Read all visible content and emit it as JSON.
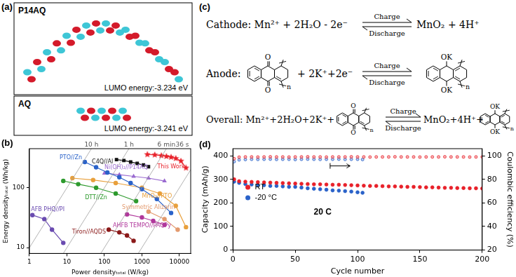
{
  "panel_a": {
    "label": "(a)",
    "molecules": [
      {
        "name": "P14AQ",
        "caption": "LUMO energy:-3.234 eV"
      },
      {
        "name": "AQ",
        "caption": "LUMO energy:-3.241 eV"
      }
    ]
  },
  "panel_c": {
    "label": "(c)",
    "arrow_top": "Charge",
    "arrow_bottom": "Discharge",
    "cathode": {
      "prefix": "Cathode:",
      "left": "Mn²⁺ + 2H₂O - 2e⁻",
      "right": "MnO₂ + 4H⁺"
    },
    "anode": {
      "prefix": "Anode:",
      "left": "+ 2K⁺+2e⁻"
    },
    "overall": {
      "prefix": "Overall:",
      "left": "Mn²⁺+2H₂O+2K⁺+",
      "right": "MnO₂+4H⁺+"
    },
    "structure_atoms": {
      "oxidized": "O",
      "reduced": "OK",
      "repeat": "n"
    }
  },
  "chart_data": [
    {
      "type": "scatter",
      "title": "(b)",
      "x_label": "Power densityₜₒₜₐₗ (W/kg)",
      "y_label": "Energy densityₜₒₜₐₗ (Wh/kg)",
      "log": true,
      "grid": false,
      "xlim": [
        1,
        20000
      ],
      "xticks": [
        1,
        10,
        100,
        1000,
        10000
      ],
      "ylim": [
        8,
        450
      ],
      "yticks": [
        10,
        100
      ],
      "time_lines": [
        {
          "label": "10 h",
          "hours": 10
        },
        {
          "label": "1 h",
          "hours": 1
        },
        {
          "label": "6 min",
          "hours": 0.1
        },
        {
          "label": "36 s",
          "hours": 0.01
        }
      ],
      "series": [
        {
          "name": "This Work",
          "color": "#e8212a",
          "marker": "star",
          "line_style": "solid",
          "x": [
            1400,
            2200,
            3300,
            4500,
            6000,
            8000,
            11000,
            15000
          ],
          "values": [
            360,
            355,
            345,
            335,
            325,
            310,
            280,
            215
          ]
        },
        {
          "name": "C4Q//Al",
          "color": "#111111",
          "marker": "square",
          "line_style": "solid",
          "x": [
            210,
            330,
            500,
            750,
            1100,
            1500
          ],
          "values": [
            295,
            285,
            270,
            255,
            240,
            225
          ]
        },
        {
          "name": "PTO//Zn",
          "color": "#2a62c9",
          "marker": "circle",
          "line_style": "solid",
          "x": [
            30,
            60,
            120,
            250,
            500,
            1000,
            2500,
            6000
          ],
          "values": [
            270,
            220,
            180,
            150,
            120,
            95,
            65,
            38
          ]
        },
        {
          "name": "Ni(OH)₂//P14AQ",
          "color": "#9a6ad0",
          "marker": "triangle",
          "line_style": "solid",
          "x": [
            100,
            250,
            600,
            1500,
            4000
          ],
          "values": [
            175,
            165,
            155,
            145,
            130
          ]
        },
        {
          "name": "MnO₂//PTO",
          "color": "#e8a03c",
          "marker": "circle",
          "line_style": "solid",
          "x": [
            14,
            50,
            200,
            1000,
            3000,
            8000,
            15000
          ],
          "values": [
            145,
            135,
            120,
            100,
            80,
            50,
            22
          ]
        },
        {
          "name": "DTT//Zn",
          "color": "#2d9a2d",
          "marker": "circle",
          "line_style": "solid",
          "x": [
            8,
            20,
            60,
            200,
            700
          ],
          "values": [
            130,
            115,
            100,
            80,
            60
          ]
        },
        {
          "name": "AHFB TEMPO//PAQPy",
          "color": "#b0379b",
          "marker": "circle",
          "line_style": "solid",
          "x": [
            400,
            1000,
            2000,
            4000
          ],
          "values": [
            36,
            32,
            28,
            24
          ]
        },
        {
          "name": "Symmetric Alizarin",
          "color": "#e39a6e",
          "marker": "circle",
          "line_style": "solid",
          "x": [
            1500,
            4000,
            9000
          ],
          "values": [
            40,
            30,
            20
          ]
        },
        {
          "name": "Tiron//AQDS",
          "color": "#8b1a1a",
          "marker": "circle",
          "line_style": "solid",
          "x": [
            130,
            250,
            400,
            600
          ],
          "values": [
            20,
            18,
            16,
            13
          ]
        },
        {
          "name": "AFB PHQ//PI",
          "color": "#6a4bb0",
          "marker": "circle",
          "line_style": "solid",
          "x": [
            1.2,
            2.5,
            4,
            8
          ],
          "values": [
            35,
            30,
            20,
            12
          ]
        }
      ]
    },
    {
      "type": "scatter",
      "title": "(d)",
      "x_label": "Cycle number",
      "y_label": "Capacity (mAh/g)",
      "y2_label": "Coulombic efficiency (%)",
      "grid": false,
      "legend": "left",
      "annotations": [
        "20 C"
      ],
      "xlim": [
        0,
        200
      ],
      "xticks": [
        0,
        50,
        100,
        150,
        200
      ],
      "ylim": [
        0,
        430
      ],
      "yticks": [
        0,
        100,
        200,
        300,
        400
      ],
      "y2lim": [
        20,
        106
      ],
      "y2ticks": [
        20,
        40,
        60,
        80,
        100
      ],
      "series": [
        {
          "name": "RT",
          "color": "#e8212a",
          "marker": "circle",
          "x": [
            1,
            5,
            10,
            15,
            20,
            25,
            30,
            35,
            40,
            45,
            50,
            55,
            60,
            65,
            70,
            75,
            80,
            85,
            90,
            95,
            100,
            105,
            110,
            115,
            120,
            125,
            130,
            135,
            140,
            145,
            150,
            155,
            160,
            165,
            170,
            175,
            180,
            185,
            190,
            195,
            200
          ],
          "values": [
            300,
            292,
            290,
            289,
            288,
            287,
            286,
            285,
            284,
            283,
            282,
            281,
            280,
            279,
            279,
            278,
            277,
            277,
            276,
            275,
            274,
            273,
            272,
            272,
            271,
            270,
            270,
            269,
            268,
            268,
            267,
            266,
            266,
            265,
            264,
            264,
            263,
            263,
            262,
            262,
            261
          ]
        },
        {
          "name": "-20 °C",
          "color": "#2a62c9",
          "marker": "circle",
          "x": [
            1,
            5,
            10,
            15,
            20,
            25,
            30,
            35,
            40,
            45,
            50,
            55,
            60,
            65,
            70,
            75,
            80,
            85,
            90,
            95,
            100,
            104
          ],
          "values": [
            290,
            285,
            280,
            278,
            276,
            275,
            272,
            272,
            270,
            268,
            268,
            265,
            262,
            260,
            258,
            256,
            253,
            252,
            250,
            248,
            245,
            243
          ]
        },
        {
          "color": "#e8212a",
          "marker": "circle",
          "axis": "y2",
          "x": [
            1,
            5,
            10,
            15,
            20,
            25,
            30,
            35,
            40,
            45,
            50,
            55,
            60,
            65,
            70,
            75,
            80,
            85,
            90,
            95,
            100,
            105,
            110,
            115,
            120,
            125,
            130,
            135,
            140,
            145,
            150,
            155,
            160,
            165,
            170,
            175,
            180,
            185,
            190,
            195,
            200
          ],
          "values": [
            97.5,
            98.8,
            99,
            99,
            98.9,
            99,
            99.1,
            99,
            99,
            98.9,
            99,
            99,
            99.1,
            99,
            99,
            98.9,
            99,
            99,
            99,
            99.1,
            99,
            99,
            98.9,
            99,
            99,
            99,
            99.1,
            99,
            99,
            99,
            98.9,
            99,
            99,
            99,
            99.1,
            99,
            99,
            99,
            98.9,
            99,
            99
          ]
        },
        {
          "color": "#2a62c9",
          "marker": "circle",
          "axis": "y2",
          "x": [
            1,
            5,
            10,
            15,
            20,
            25,
            30,
            35,
            40,
            45,
            50,
            55,
            60,
            65,
            70,
            75,
            80,
            85,
            90,
            95,
            100,
            104
          ],
          "values": [
            95,
            96.5,
            96.8,
            97,
            96.9,
            97,
            97.1,
            96.9,
            97,
            97,
            96.8,
            97,
            97.1,
            97,
            96.9,
            97,
            97,
            97.1,
            96.9,
            97,
            97,
            96.8
          ]
        }
      ]
    }
  ]
}
